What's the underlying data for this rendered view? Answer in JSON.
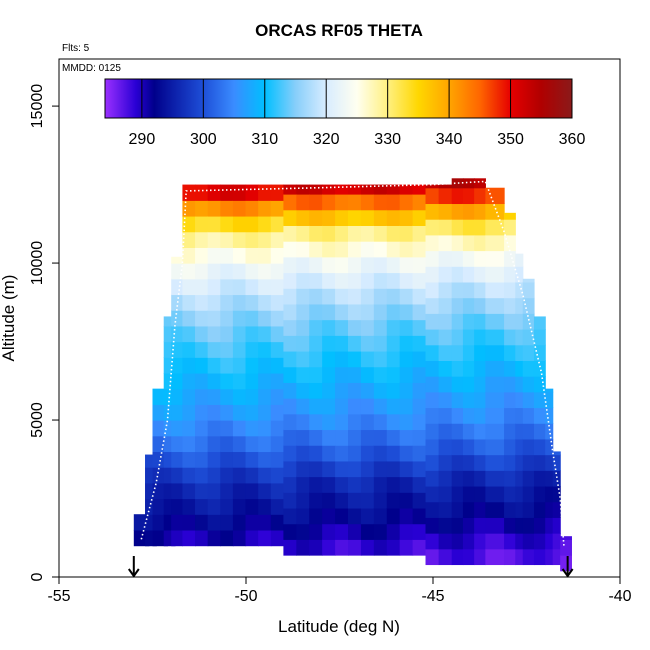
{
  "chart_data": {
    "type": "heatmap",
    "title": "ORCAS RF05 THETA",
    "annotations": {
      "flights": "Flts: 5",
      "date": "MMDD: 0125"
    },
    "xlabel": "Latitude (deg N)",
    "ylabel": "Altitude (m)",
    "xlim": [
      -55,
      -40
    ],
    "ylim": [
      0,
      16500
    ],
    "x_ticks": [
      -55,
      -50,
      -45,
      -40
    ],
    "x_tick_labels": [
      "-55",
      "-50",
      "-45",
      "-40"
    ],
    "y_ticks": [
      0,
      5000,
      10000,
      15000
    ],
    "y_tick_labels": [
      "0",
      "5000",
      "10000",
      "15000"
    ],
    "colorbar": {
      "range": [
        284,
        360
      ],
      "ticks": [
        290,
        300,
        310,
        320,
        330,
        340,
        350,
        360
      ],
      "tick_labels": [
        "290",
        "300",
        "310",
        "320",
        "330",
        "340",
        "350",
        "360"
      ],
      "stops": [
        {
          "v": 284,
          "c": "#9b30ff"
        },
        {
          "v": 289,
          "c": "#2a00d5"
        },
        {
          "v": 292,
          "c": "#00008b"
        },
        {
          "v": 300,
          "c": "#1e4fd8"
        },
        {
          "v": 305,
          "c": "#3a8cff"
        },
        {
          "v": 310,
          "c": "#00bfff"
        },
        {
          "v": 315,
          "c": "#87cefa"
        },
        {
          "v": 320,
          "c": "#d8ecff"
        },
        {
          "v": 325,
          "c": "#fffff0"
        },
        {
          "v": 330,
          "c": "#fff080"
        },
        {
          "v": 335,
          "c": "#ffd700"
        },
        {
          "v": 340,
          "c": "#ffa500"
        },
        {
          "v": 345,
          "c": "#ff6600"
        },
        {
          "v": 350,
          "c": "#e60000"
        },
        {
          "v": 355,
          "c": "#b00000"
        },
        {
          "v": 360,
          "c": "#8b1a1a"
        }
      ]
    },
    "theta_profile": {
      "altitude": [
        1000,
        2000,
        3000,
        4000,
        5000,
        6000,
        7000,
        8000,
        9000,
        10000,
        11000,
        12000,
        12500
      ],
      "theta": [
        289,
        293,
        296,
        301,
        305,
        308,
        311,
        314,
        318,
        323,
        330,
        345,
        355
      ]
    },
    "column_extents": [
      {
        "x": [
          -53.0,
          -52.6
        ],
        "y": [
          1000,
          2000
        ]
      },
      {
        "x": [
          -52.7,
          -52.4
        ],
        "y": [
          1000,
          3900
        ]
      },
      {
        "x": [
          -52.5,
          -52.1
        ],
        "y": [
          1000,
          6000
        ]
      },
      {
        "x": [
          -52.2,
          -51.9
        ],
        "y": [
          1000,
          8300
        ]
      },
      {
        "x": [
          -52.0,
          -51.7
        ],
        "y": [
          1000,
          10200
        ]
      },
      {
        "x": [
          -51.7,
          -49.0
        ],
        "y": [
          1000,
          12500
        ]
      },
      {
        "x": [
          -49.0,
          -45.2
        ],
        "y": [
          700,
          12500
        ]
      },
      {
        "x": [
          -45.2,
          -44.5
        ],
        "y": [
          400,
          12500
        ]
      },
      {
        "x": [
          -44.5,
          -43.6
        ],
        "y": [
          400,
          12700
        ]
      },
      {
        "x": [
          -43.6,
          -43.1
        ],
        "y": [
          400,
          12400
        ]
      },
      {
        "x": [
          -43.1,
          -42.8
        ],
        "y": [
          400,
          11600
        ]
      },
      {
        "x": [
          -42.8,
          -42.6
        ],
        "y": [
          400,
          10300
        ]
      },
      {
        "x": [
          -42.6,
          -42.3
        ],
        "y": [
          400,
          9500
        ]
      },
      {
        "x": [
          -42.3,
          -42.0
        ],
        "y": [
          400,
          8300
        ]
      },
      {
        "x": [
          -42.0,
          -41.8
        ],
        "y": [
          400,
          6000
        ]
      },
      {
        "x": [
          -41.8,
          -41.6
        ],
        "y": [
          400,
          4000
        ]
      },
      {
        "x": [
          -41.6,
          -41.3
        ],
        "y": [
          200,
          1300
        ]
      }
    ],
    "flight_track": {
      "lat": [
        -52.8,
        -52.4,
        -52.1,
        -51.9,
        -51.7,
        -51.6,
        -48.0,
        -45.0,
        -43.6,
        -43.1,
        -42.6,
        -42.1,
        -41.8,
        -41.6,
        -41.5
      ],
      "alt": [
        1200,
        3000,
        5000,
        8000,
        10000,
        12300,
        12400,
        12500,
        12600,
        11000,
        9000,
        6500,
        4000,
        2500,
        1000
      ]
    },
    "markers": [
      {
        "lat": -53.0,
        "kind": "down-arrow"
      },
      {
        "lat": -41.4,
        "kind": "down-arrow"
      }
    ],
    "grid": false,
    "legend": "colorbar inside plot, top"
  }
}
